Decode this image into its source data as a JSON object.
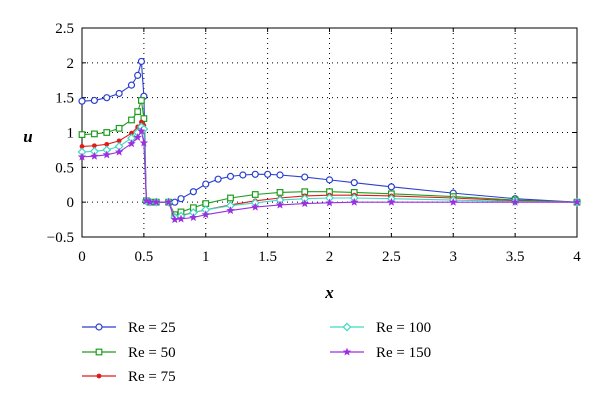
{
  "chart_data": {
    "type": "line",
    "xlabel": "x",
    "ylabel": "u",
    "xlim": [
      0,
      4
    ],
    "ylim": [
      -0.5,
      2.5
    ],
    "xticks": [
      "0",
      "0.5",
      "1",
      "1.5",
      "2",
      "2.5",
      "3",
      "3.5",
      "4"
    ],
    "yticks": [
      "−0.5",
      "0",
      "0.5",
      "1",
      "1.5",
      "2",
      "2.5"
    ],
    "grid": "dotted",
    "legend_placement": "below plot, two columns",
    "series": [
      {
        "name": "Re = 25",
        "color": "#2b3fd1",
        "marker": "circle",
        "x": [
          0,
          0.1,
          0.2,
          0.3,
          0.4,
          0.45,
          0.48,
          0.5,
          0.52,
          0.55,
          0.6,
          0.7,
          0.75,
          0.8,
          0.9,
          1.0,
          1.1,
          1.2,
          1.3,
          1.4,
          1.5,
          1.6,
          1.8,
          2.0,
          2.2,
          2.5,
          3.0,
          3.5,
          4.0
        ],
        "y": [
          1.45,
          1.46,
          1.5,
          1.56,
          1.68,
          1.82,
          2.02,
          1.52,
          0.02,
          0,
          0,
          0,
          0,
          0.05,
          0.15,
          0.26,
          0.33,
          0.37,
          0.39,
          0.4,
          0.4,
          0.39,
          0.36,
          0.32,
          0.28,
          0.22,
          0.13,
          0.05,
          0
        ]
      },
      {
        "name": "Re = 50",
        "color": "#1e9e1e",
        "marker": "square",
        "x": [
          0,
          0.1,
          0.2,
          0.3,
          0.4,
          0.45,
          0.48,
          0.5,
          0.52,
          0.55,
          0.6,
          0.7,
          0.75,
          0.8,
          0.9,
          1.0,
          1.2,
          1.4,
          1.6,
          1.8,
          2.0,
          2.2,
          2.5,
          3.0,
          3.5,
          4.0
        ],
        "y": [
          0.97,
          0.98,
          1.0,
          1.06,
          1.18,
          1.3,
          1.46,
          1.2,
          0.02,
          0,
          0,
          0,
          -0.18,
          -0.14,
          -0.08,
          -0.02,
          0.06,
          0.11,
          0.14,
          0.15,
          0.15,
          0.14,
          0.12,
          0.08,
          0.03,
          0
        ]
      },
      {
        "name": "Re = 75",
        "color": "#e01b1b",
        "marker": "dot",
        "x": [
          0,
          0.1,
          0.2,
          0.3,
          0.4,
          0.45,
          0.48,
          0.5,
          0.52,
          0.55,
          0.6,
          0.7,
          0.75,
          0.8,
          0.9,
          1.0,
          1.2,
          1.4,
          1.6,
          1.8,
          2.0,
          2.2,
          2.5,
          3.0,
          3.5,
          4.0
        ],
        "y": [
          0.8,
          0.81,
          0.83,
          0.88,
          0.99,
          1.08,
          1.15,
          1.1,
          0.02,
          0,
          0,
          0,
          -0.2,
          -0.19,
          -0.15,
          -0.11,
          -0.04,
          0.02,
          0.06,
          0.09,
          0.1,
          0.1,
          0.09,
          0.06,
          0.02,
          0
        ]
      },
      {
        "name": "Re = 100",
        "color": "#3fd9c2",
        "marker": "diamond",
        "x": [
          0,
          0.1,
          0.2,
          0.3,
          0.4,
          0.45,
          0.48,
          0.5,
          0.52,
          0.55,
          0.6,
          0.7,
          0.75,
          0.8,
          0.9,
          1.0,
          1.2,
          1.4,
          1.6,
          1.8,
          2.0,
          2.2,
          2.5,
          3.0,
          3.5,
          4.0
        ],
        "y": [
          0.72,
          0.73,
          0.75,
          0.8,
          0.92,
          1.0,
          1.08,
          1.05,
          0.02,
          0,
          0,
          0,
          -0.22,
          -0.2,
          -0.15,
          -0.11,
          -0.05,
          -0.01,
          0.03,
          0.05,
          0.06,
          0.06,
          0.05,
          0.03,
          0.01,
          0
        ]
      },
      {
        "name": "Re = 150",
        "color": "#9b30e0",
        "marker": "star",
        "x": [
          0,
          0.1,
          0.2,
          0.3,
          0.4,
          0.45,
          0.48,
          0.5,
          0.52,
          0.55,
          0.6,
          0.7,
          0.75,
          0.8,
          0.9,
          1.0,
          1.2,
          1.4,
          1.6,
          1.8,
          2.0,
          2.2,
          2.5,
          3.0,
          3.5,
          4.0
        ],
        "y": [
          0.65,
          0.66,
          0.68,
          0.72,
          0.84,
          0.93,
          1.02,
          0.85,
          0.02,
          0,
          0,
          0,
          -0.25,
          -0.24,
          -0.22,
          -0.18,
          -0.12,
          -0.07,
          -0.04,
          -0.02,
          -0.01,
          0,
          0,
          0,
          0,
          0
        ]
      }
    ]
  }
}
